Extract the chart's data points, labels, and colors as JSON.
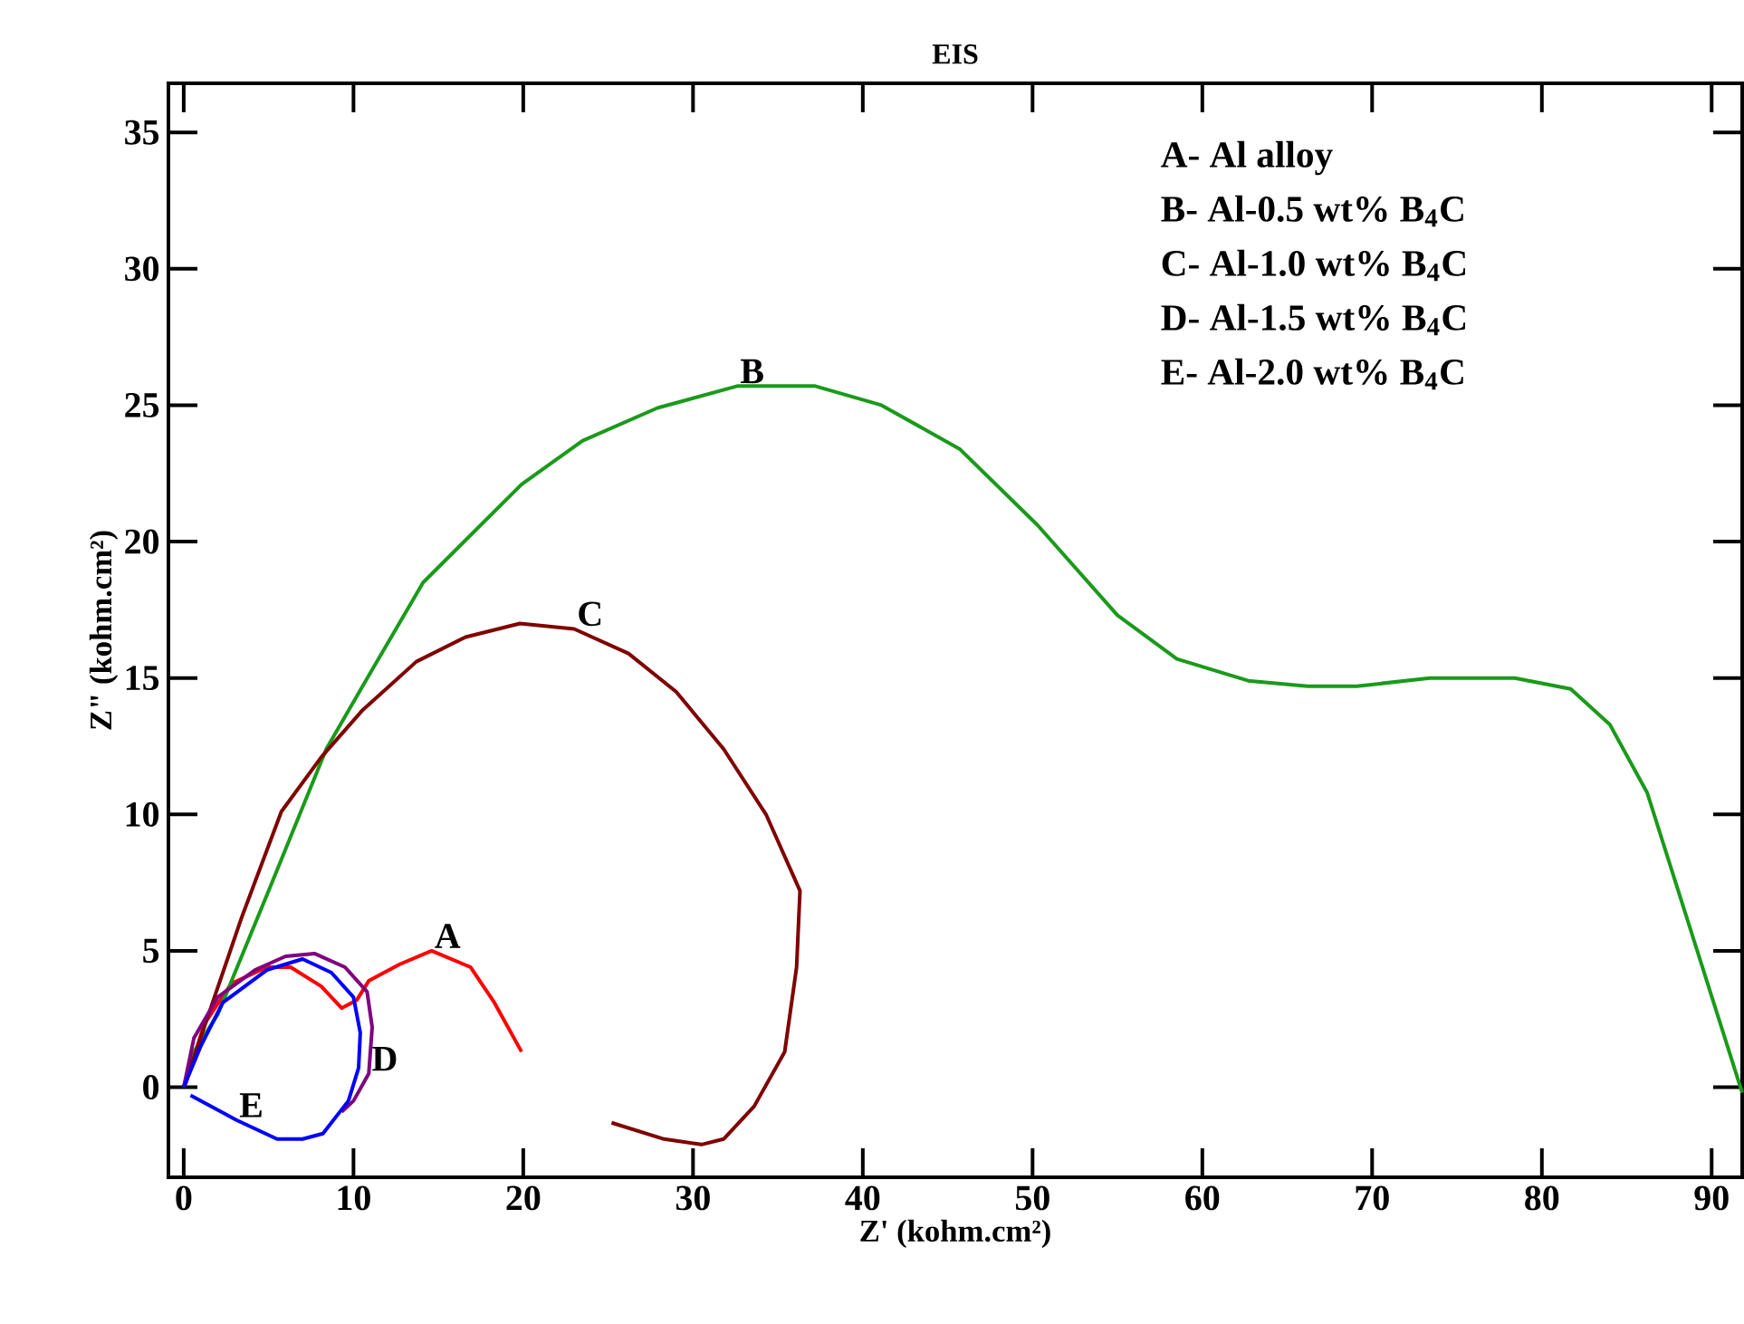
{
  "chart_data": {
    "type": "line",
    "title": "EIS",
    "xlabel": "Z' (kohm.cm²)",
    "ylabel": "Z\" (kohm.cm²)",
    "xlim": [
      -0.9,
      91.8
    ],
    "ylim": [
      -3.3,
      36.8
    ],
    "xticks": [
      0,
      10,
      20,
      30,
      40,
      50,
      60,
      70,
      80,
      90
    ],
    "yticks": [
      0,
      5,
      10,
      15,
      20,
      25,
      30,
      35
    ],
    "series": [
      {
        "color": "#ff0000",
        "x": [
          0.1,
          1.2,
          2.8,
          4.9,
          6.3,
          8.1,
          9.3,
          10.2,
          10.9,
          12.7,
          14.6,
          16.9,
          18.3,
          19.9
        ],
        "values": [
          0.1,
          2.3,
          3.8,
          4.4,
          4.4,
          3.7,
          2.9,
          3.2,
          3.9,
          4.5,
          5.0,
          4.4,
          3.1,
          1.3
        ]
      },
      {
        "color": "#1a9a1a",
        "x": [
          0,
          0.5,
          2.0,
          5.0,
          8.4,
          11.0,
          14.1,
          19.9,
          23.5,
          27.9,
          32.6,
          37.2,
          41.1,
          45.7,
          50.3,
          55.0,
          58.5,
          62.7,
          66.2,
          69.1,
          73.4,
          78.4,
          81.7,
          84.0,
          86.2,
          91.8
        ],
        "values": [
          0,
          1.2,
          2.66,
          7.2,
          12.4,
          15.2,
          18.5,
          22.1,
          23.7,
          24.9,
          25.7,
          25.7,
          25.0,
          23.4,
          20.6,
          17.3,
          15.7,
          14.9,
          14.7,
          14.7,
          15.0,
          15.0,
          14.6,
          13.3,
          10.8,
          -0.2
        ]
      },
      {
        "color": "#800000",
        "x": [
          0,
          1.7,
          3.4,
          5.75,
          8.1,
          10.5,
          13.7,
          16.6,
          19.8,
          23.0,
          26.2,
          29.0,
          31.8,
          34.3,
          36.3,
          36.1,
          35.4,
          33.6,
          31.8,
          30.5,
          28.3,
          25.2
        ],
        "values": [
          0,
          3.1,
          6.2,
          10.1,
          12.1,
          13.8,
          15.6,
          16.5,
          17.0,
          16.8,
          15.9,
          14.5,
          12.4,
          10.0,
          7.2,
          4.4,
          1.3,
          -0.7,
          -1.9,
          -2.1,
          -1.9,
          -1.3
        ]
      },
      {
        "color": "#800080",
        "x": [
          0,
          0.6,
          2.0,
          4.2,
          6.0,
          7.7,
          9.5,
          10.8,
          11.1,
          10.9,
          10.0,
          9.3
        ],
        "values": [
          0,
          1.8,
          3.3,
          4.3,
          4.8,
          4.9,
          4.4,
          3.5,
          2.2,
          0.5,
          -0.5,
          -0.9
        ]
      },
      {
        "color": "#0000ff",
        "x": [
          0.4,
          3.1,
          5.5,
          7.0,
          8.2,
          9.7,
          10.3,
          10.4,
          10.0,
          8.7,
          7.0,
          4.9,
          2.3,
          1.0,
          0
        ],
        "values": [
          -0.3,
          -1.2,
          -1.9,
          -1.9,
          -1.7,
          -0.5,
          0.7,
          2.0,
          3.3,
          4.2,
          4.7,
          4.3,
          3.1,
          1.5,
          0
        ]
      }
    ],
    "annotations": [
      "A- Al alloy",
      "B- Al-0.5 wt% B$_{4}$C",
      "C- Al-1.0 wt% B$_{4}$C",
      "D- Al-1.5 wt% B$_{4}$C",
      "E- Al-2.0 wt% B$_{4}$C",
      {
        "text": "A",
        "x": 14.6,
        "y": 5.0
      },
      {
        "text": "B",
        "x": 32.6,
        "y": 25.7
      },
      {
        "text": "C",
        "x": 23.0,
        "y": 16.8
      },
      {
        "text": "D",
        "x": 10.9,
        "y": 0.5
      },
      {
        "text": "E",
        "x": 3.1,
        "y": -1.2
      }
    ]
  }
}
